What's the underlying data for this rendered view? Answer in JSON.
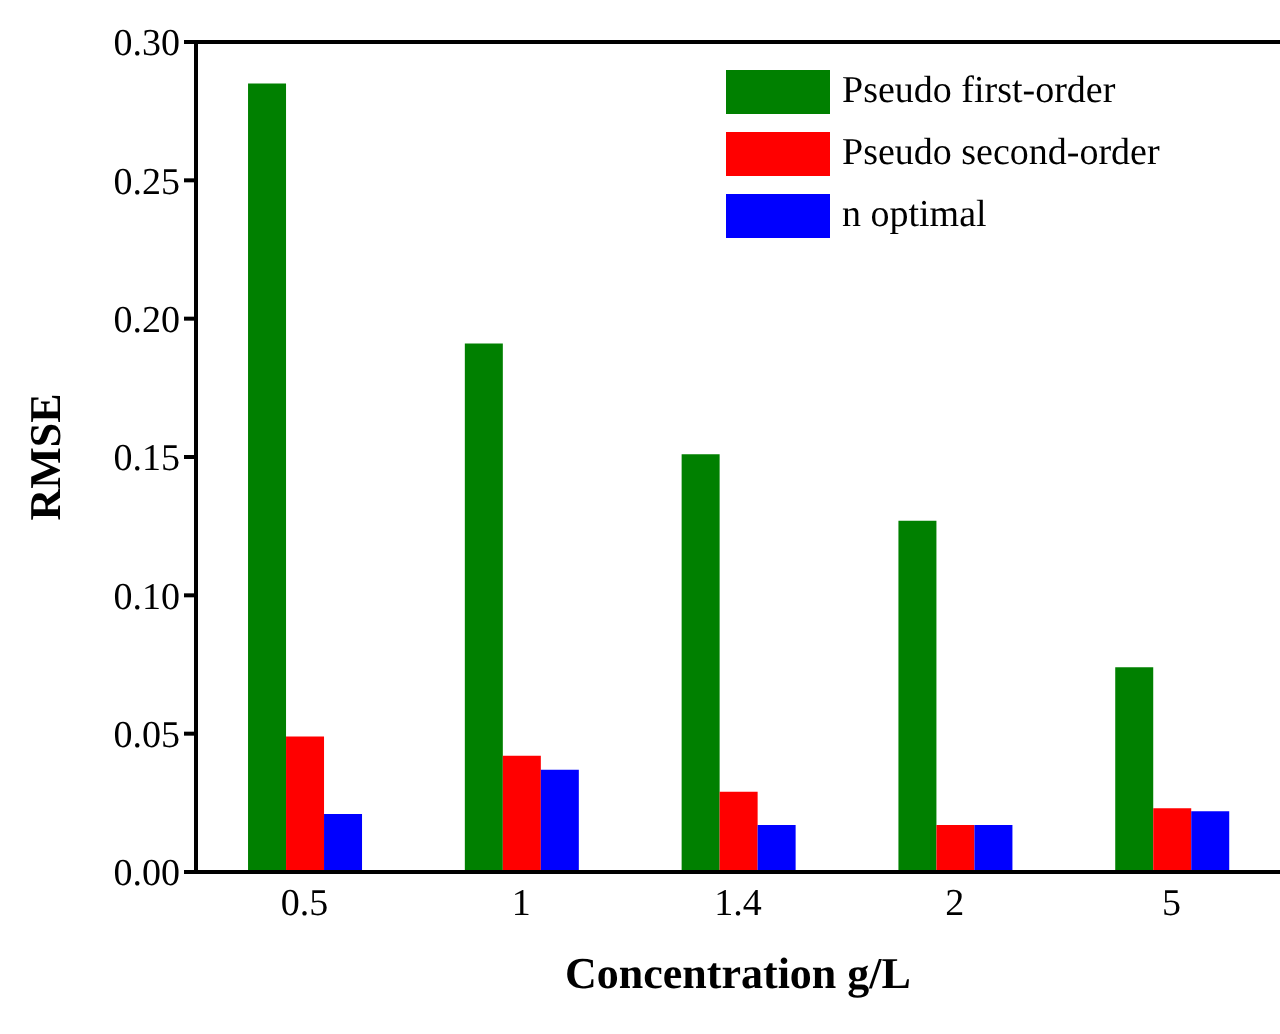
{
  "chart_data": {
    "type": "bar",
    "xlabel": "Concentration g/L",
    "ylabel": "RMSE",
    "categories": [
      "0.5",
      "1",
      "1.4",
      "2",
      "5"
    ],
    "series": [
      {
        "name": "Pseudo first-order",
        "color": "#008000",
        "values": [
          0.285,
          0.191,
          0.151,
          0.127,
          0.074
        ]
      },
      {
        "name": "Pseudo second-order",
        "color": "#ff0000",
        "values": [
          0.049,
          0.042,
          0.029,
          0.017,
          0.023
        ]
      },
      {
        "name": "n optimal",
        "color": "#0000ff",
        "values": [
          0.021,
          0.037,
          0.017,
          0.017,
          0.022
        ]
      }
    ],
    "ylim": [
      0,
      0.3
    ],
    "yticks": [
      {
        "value": 0,
        "label": "0.00"
      },
      {
        "value": 0.05,
        "label": "0.05"
      },
      {
        "value": 0.1,
        "label": "0.10"
      },
      {
        "value": 0.15,
        "label": "0.15"
      },
      {
        "value": 0.2,
        "label": "0.20"
      },
      {
        "value": 0.25,
        "label": "0.25"
      },
      {
        "value": 0.3,
        "label": "0.30"
      }
    ],
    "grid": false,
    "legend": "top right"
  }
}
